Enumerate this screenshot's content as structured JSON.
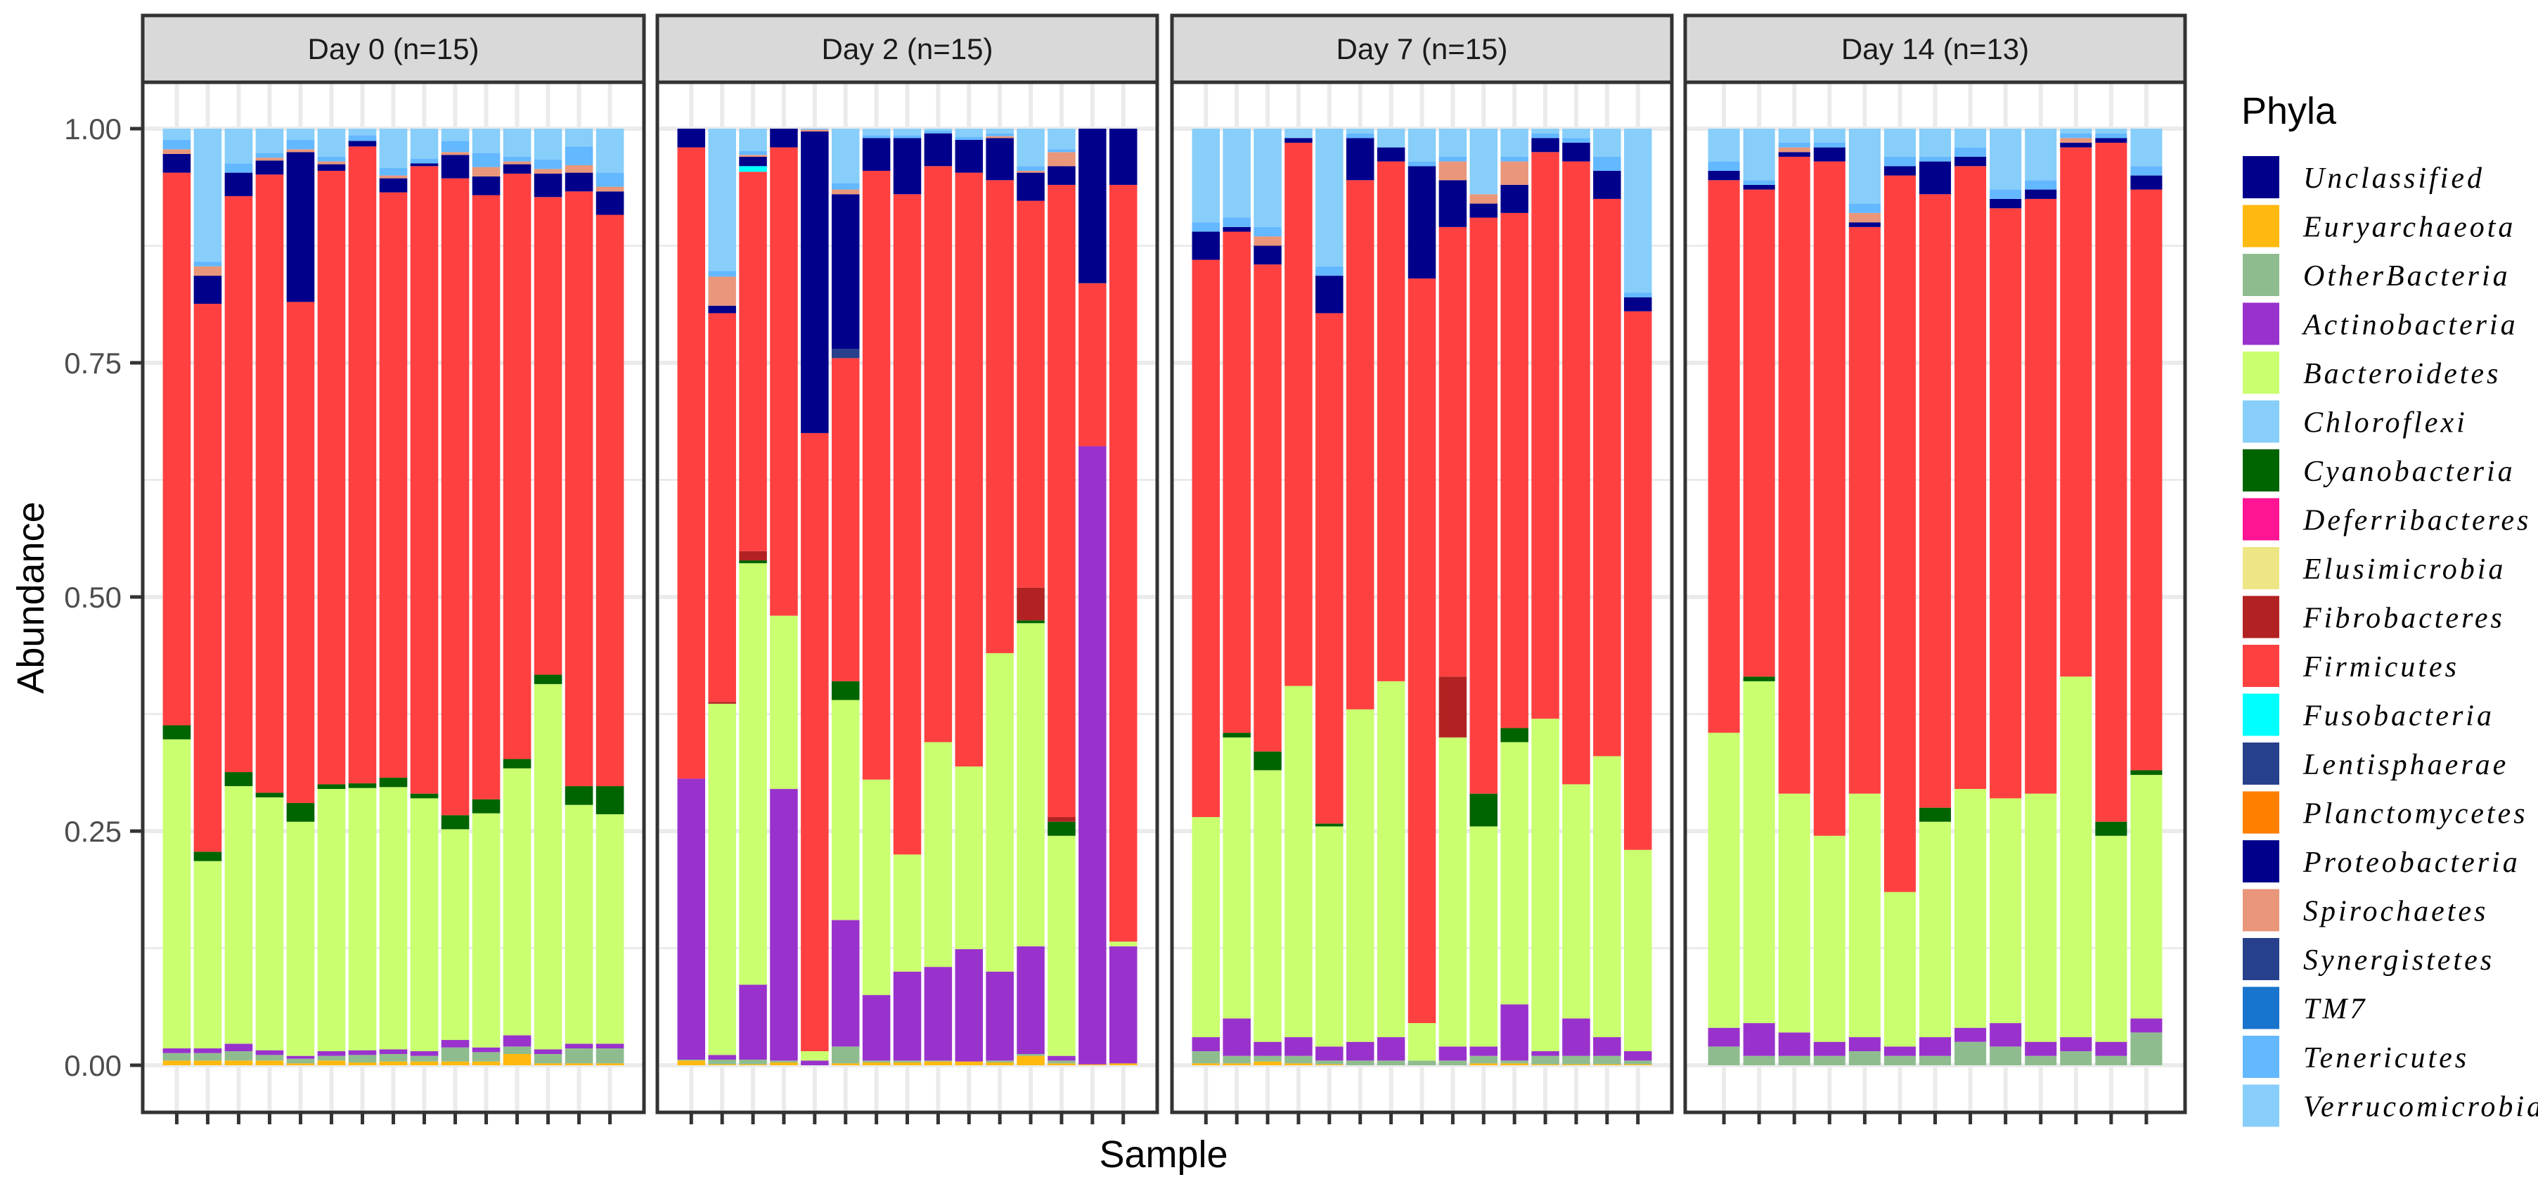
{
  "chart_data": {
    "type": "bar",
    "stacked": true,
    "title": "",
    "xlabel": "Sample",
    "ylabel": "Abundance",
    "ylim": [
      0,
      1
    ],
    "yticks": [
      "0.00",
      "0.25",
      "0.50",
      "0.75",
      "1.00"
    ],
    "ytick_values": [
      0,
      0.25,
      0.5,
      0.75,
      1.0
    ],
    "grid": true,
    "legend": {
      "title": "Phyla",
      "placement": "right",
      "entries": [
        {
          "name": "Unclassified",
          "color": "#00008B"
        },
        {
          "name": "Euryarchaeota",
          "color": "#FFB90F"
        },
        {
          "name": "OtherBacteria",
          "color": "#8FBC8F"
        },
        {
          "name": "Actinobacteria",
          "color": "#9932CC"
        },
        {
          "name": "Bacteroidetes",
          "color": "#CAFF70"
        },
        {
          "name": "Chloroflexi",
          "color": "#87CEFA"
        },
        {
          "name": "Cyanobacteria",
          "color": "#006400"
        },
        {
          "name": "Deferribacteres",
          "color": "#FF1493"
        },
        {
          "name": "Elusimicrobia",
          "color": "#EEE685"
        },
        {
          "name": "Fibrobacteres",
          "color": "#B22222"
        },
        {
          "name": "Firmicutes",
          "color": "#FF4040"
        },
        {
          "name": "Fusobacteria",
          "color": "#00FFFF"
        },
        {
          "name": "Lentisphaerae",
          "color": "#27408B"
        },
        {
          "name": "Planctomycetes",
          "color": "#FF7F00"
        },
        {
          "name": "Proteobacteria",
          "color": "#00008B"
        },
        {
          "name": "Spirochaetes",
          "color": "#E9967A"
        },
        {
          "name": "Synergistetes",
          "color": "#27408B"
        },
        {
          "name": "TM7",
          "color": "#1874CD"
        },
        {
          "name": "Tenericutes",
          "color": "#63B8FF"
        },
        {
          "name": "Verrucomicrobia",
          "color": "#87CEFA"
        }
      ]
    },
    "stack_order": [
      "Euryarchaeota",
      "OtherBacteria",
      "Actinobacteria",
      "Bacteroidetes",
      "Cyanobacteria",
      "Fibrobacteres",
      "Firmicutes",
      "Fusobacteria",
      "Lentisphaerae",
      "Proteobacteria",
      "Spirochaetes",
      "Tenericutes",
      "Verrucomicrobia"
    ],
    "facets": [
      {
        "title": "Day 0 (n=15)",
        "samples": [
          [
            0.005,
            0.008,
            0.005,
            0.33,
            0.015,
            0,
            0.59,
            0,
            0,
            0.02,
            0.005,
            0.01,
            0.012
          ],
          [
            0.005,
            0.008,
            0.005,
            0.2,
            0.01,
            0,
            0.585,
            0,
            0,
            0.03,
            0.01,
            0.005,
            0.142
          ],
          [
            0.005,
            0.01,
            0.008,
            0.275,
            0.015,
            0,
            0.615,
            0,
            0,
            0.025,
            0,
            0.01,
            0.037
          ],
          [
            0.005,
            0.006,
            0.005,
            0.27,
            0.005,
            0,
            0.66,
            0,
            0,
            0.015,
            0.003,
            0.005,
            0.026
          ],
          [
            0.002,
            0.005,
            0.003,
            0.25,
            0.02,
            0,
            0.535,
            0,
            0,
            0.16,
            0.003,
            0.01,
            0.012
          ],
          [
            0.005,
            0.005,
            0.005,
            0.28,
            0.005,
            0,
            0.655,
            0,
            0,
            0.007,
            0.003,
            0.005,
            0.03
          ],
          [
            0.003,
            0.008,
            0.005,
            0.28,
            0.005,
            0,
            0.68,
            0,
            0,
            0.006,
            0,
            0.006,
            0.007
          ],
          [
            0.004,
            0.008,
            0.005,
            0.28,
            0.01,
            0,
            0.625,
            0,
            0,
            0.015,
            0.003,
            0.008,
            0.042
          ],
          [
            0.004,
            0.006,
            0.005,
            0.27,
            0.005,
            0,
            0.67,
            0,
            0,
            0.003,
            0,
            0.005,
            0.032
          ],
          [
            0.004,
            0.015,
            0.008,
            0.225,
            0.015,
            0,
            0.68,
            0,
            0,
            0.025,
            0.003,
            0.012,
            0.013
          ],
          [
            0.004,
            0.01,
            0.005,
            0.25,
            0.015,
            0,
            0.645,
            0,
            0,
            0.02,
            0.01,
            0.015,
            0.026
          ],
          [
            0.012,
            0.008,
            0.012,
            0.285,
            0.01,
            0,
            0.625,
            0,
            0,
            0.01,
            0.003,
            0.005,
            0.03
          ],
          [
            0.002,
            0.01,
            0.005,
            0.39,
            0.01,
            0,
            0.51,
            0,
            0,
            0.025,
            0.005,
            0.01,
            0.033
          ],
          [
            0.002,
            0.016,
            0.005,
            0.255,
            0.02,
            0,
            0.635,
            0,
            0,
            0.02,
            0.008,
            0.02,
            0.019
          ],
          [
            0.002,
            0.016,
            0.005,
            0.245,
            0.03,
            0,
            0.61,
            0,
            0,
            0.025,
            0.005,
            0.015,
            0.047
          ]
        ]
      },
      {
        "title": "Day 2 (n=15)",
        "samples": [
          [
            0.005,
            0.001,
            0.3,
            0,
            0,
            0,
            0.674,
            0,
            0,
            0.02,
            0,
            0,
            0
          ],
          [
            0.001,
            0.005,
            0.005,
            0.375,
            0,
            0.002,
            0.415,
            0,
            0,
            0.008,
            0.031,
            0.006,
            0.152
          ],
          [
            0.001,
            0.005,
            0.08,
            0.45,
            0.003,
            0.01,
            0.405,
            0.006,
            0,
            0.01,
            0.002,
            0.004,
            0.024
          ],
          [
            0.003,
            0.002,
            0.29,
            0.185,
            0,
            0,
            0.5,
            0,
            0,
            0.02,
            0,
            0,
            0
          ],
          [
            0,
            0,
            0.005,
            0.01,
            0,
            0,
            0.66,
            0,
            0,
            0.322,
            0.002,
            0.001,
            0
          ],
          [
            0.002,
            0.018,
            0.135,
            0.235,
            0.02,
            0,
            0.345,
            0,
            0.01,
            0.165,
            0.005,
            0.007,
            0.058
          ],
          [
            0.003,
            0.002,
            0.07,
            0.23,
            0,
            0,
            0.65,
            0,
            0,
            0.035,
            0,
            0.003,
            0.007
          ],
          [
            0.003,
            0.002,
            0.095,
            0.125,
            0,
            0,
            0.705,
            0,
            0,
            0.06,
            0,
            0.003,
            0.007
          ],
          [
            0.004,
            0.001,
            0.1,
            0.24,
            0,
            0,
            0.615,
            0,
            0,
            0.035,
            0,
            0.003,
            0.002
          ],
          [
            0.004,
            0,
            0.12,
            0.195,
            0,
            0,
            0.634,
            0,
            0,
            0.035,
            0,
            0.003,
            0.009
          ],
          [
            0.003,
            0.002,
            0.095,
            0.34,
            0,
            0,
            0.505,
            0,
            0,
            0.045,
            0.002,
            0.003,
            0.005
          ],
          [
            0.01,
            0.002,
            0.115,
            0.345,
            0.003,
            0.035,
            0.413,
            0,
            0,
            0.03,
            0.002,
            0.005,
            0.04
          ],
          [
            0.002,
            0.003,
            0.005,
            0.235,
            0.015,
            0.005,
            0.675,
            0,
            0,
            0.02,
            0.015,
            0.003,
            0.022
          ],
          [
            0.001,
            0,
            0.66,
            0,
            0,
            0,
            0.174,
            0,
            0,
            0.165,
            0,
            0,
            0
          ],
          [
            0.002,
            0,
            0.125,
            0.005,
            0,
            0,
            0.808,
            0,
            0,
            0.06,
            0,
            0,
            0
          ]
        ]
      },
      {
        "title": "Day 7 (n=15)",
        "samples": [
          [
            0.002,
            0.013,
            0.015,
            0.235,
            0,
            0,
            0.595,
            0,
            0,
            0.03,
            0,
            0.01,
            0.1
          ],
          [
            0.002,
            0.008,
            0.04,
            0.3,
            0.005,
            0,
            0.535,
            0,
            0,
            0.005,
            0,
            0.01,
            0.095
          ],
          [
            0.004,
            0.006,
            0.015,
            0.29,
            0.02,
            0,
            0.52,
            0,
            0,
            0.02,
            0.01,
            0.01,
            0.105
          ],
          [
            0.002,
            0.008,
            0.02,
            0.375,
            0,
            0,
            0.58,
            0,
            0,
            0.005,
            0,
            0,
            0.01
          ],
          [
            0.001,
            0.004,
            0.015,
            0.235,
            0.003,
            0,
            0.545,
            0,
            0,
            0.04,
            0,
            0.01,
            0.147
          ],
          [
            0,
            0.005,
            0.02,
            0.355,
            0,
            0,
            0.565,
            0,
            0,
            0.045,
            0,
            0.005,
            0.005
          ],
          [
            0,
            0.005,
            0.025,
            0.38,
            0,
            0,
            0.555,
            0,
            0,
            0.015,
            0,
            0,
            0.02
          ],
          [
            0,
            0.005,
            0,
            0.04,
            0,
            0,
            0.795,
            0,
            0,
            0.12,
            0,
            0.005,
            0.035
          ],
          [
            0,
            0.005,
            0.015,
            0.33,
            0,
            0.065,
            0.48,
            0,
            0,
            0.05,
            0.02,
            0.005,
            0.03
          ],
          [
            0.002,
            0.008,
            0.01,
            0.235,
            0.035,
            0,
            0.615,
            0,
            0,
            0.015,
            0.01,
            0,
            0.07
          ],
          [
            0.002,
            0.003,
            0.06,
            0.28,
            0.015,
            0,
            0.55,
            0,
            0,
            0.03,
            0.025,
            0.005,
            0.03
          ],
          [
            0.001,
            0.009,
            0.005,
            0.355,
            0,
            0,
            0.605,
            0,
            0,
            0.015,
            0,
            0.005,
            0.005
          ],
          [
            0.001,
            0.009,
            0.04,
            0.25,
            0,
            0,
            0.665,
            0,
            0,
            0.02,
            0,
            0.005,
            0.01
          ],
          [
            0.001,
            0.009,
            0.02,
            0.3,
            0,
            0,
            0.595,
            0,
            0,
            0.03,
            0,
            0.015,
            0.03
          ],
          [
            0.001,
            0.004,
            0.01,
            0.215,
            0,
            0,
            0.575,
            0,
            0,
            0.015,
            0,
            0.005,
            0.175
          ]
        ]
      },
      {
        "title": "Day 14 (n=13)",
        "samples": [
          [
            0,
            0.02,
            0.02,
            0.315,
            0,
            0,
            0.59,
            0,
            0,
            0.01,
            0,
            0.01,
            0.035
          ],
          [
            0,
            0.01,
            0.035,
            0.365,
            0.005,
            0,
            0.52,
            0,
            0,
            0.005,
            0,
            0.005,
            0.055
          ],
          [
            0,
            0.01,
            0.025,
            0.255,
            0,
            0,
            0.68,
            0,
            0,
            0.005,
            0.005,
            0.005,
            0.015
          ],
          [
            0,
            0.01,
            0.015,
            0.22,
            0,
            0,
            0.72,
            0,
            0,
            0.015,
            0,
            0.005,
            0.015
          ],
          [
            0,
            0.015,
            0.015,
            0.26,
            0,
            0,
            0.605,
            0,
            0,
            0.005,
            0.01,
            0.01,
            0.08
          ],
          [
            0,
            0.01,
            0.01,
            0.165,
            0,
            0,
            0.765,
            0,
            0,
            0.01,
            0,
            0.01,
            0.03
          ],
          [
            0,
            0.01,
            0.02,
            0.23,
            0.015,
            0,
            0.655,
            0,
            0,
            0.035,
            0,
            0.005,
            0.03
          ],
          [
            0,
            0.025,
            0.015,
            0.255,
            0,
            0,
            0.665,
            0,
            0,
            0.01,
            0,
            0.01,
            0.02
          ],
          [
            0,
            0.02,
            0.025,
            0.24,
            0,
            0,
            0.63,
            0,
            0,
            0.01,
            0,
            0.01,
            0.065
          ],
          [
            0,
            0.01,
            0.015,
            0.265,
            0,
            0,
            0.635,
            0,
            0,
            0.01,
            0,
            0.01,
            0.055
          ],
          [
            0,
            0.015,
            0.015,
            0.385,
            0,
            0,
            0.565,
            0,
            0,
            0.005,
            0.005,
            0.005,
            0.005
          ],
          [
            0,
            0.01,
            0.015,
            0.22,
            0.015,
            0,
            0.725,
            0,
            0,
            0.005,
            0,
            0.005,
            0.005
          ],
          [
            0,
            0.035,
            0.015,
            0.26,
            0.005,
            0,
            0.62,
            0,
            0,
            0.015,
            0,
            0.01,
            0.04
          ]
        ]
      }
    ]
  }
}
